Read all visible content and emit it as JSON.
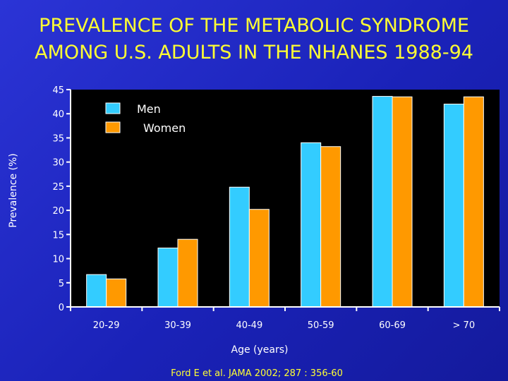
{
  "title_lines": [
    "PREVALENCE OF THE METABOLIC SYNDROME",
    "AMONG U.S. ADULTS IN THE NHANES 1988-94"
  ],
  "source": "Ford E et al. JAMA 2002; 287 : 356-60",
  "colors": {
    "men": "#33ccff",
    "women": "#ff9900",
    "title": "#ffff33",
    "plot_bg": "#000000"
  },
  "chart_data": {
    "type": "bar",
    "title": "PREVALENCE OF THE METABOLIC SYNDROME AMONG U.S. ADULTS IN THE NHANES 1988-94",
    "xlabel": "Age (years)",
    "ylabel": "Prevalence (%)",
    "categories": [
      "20-29",
      "30-39",
      "40-49",
      "50-59",
      "60-69",
      "> 70"
    ],
    "series": [
      {
        "name": "Men",
        "values": [
          6.7,
          12.2,
          24.8,
          34.0,
          43.6,
          42.0
        ]
      },
      {
        "name": "Women",
        "values": [
          5.8,
          14.0,
          20.2,
          33.2,
          43.5,
          43.5
        ]
      }
    ],
    "ylim": [
      0,
      45
    ],
    "yticks": [
      0,
      5,
      10,
      15,
      20,
      25,
      30,
      35,
      40,
      45
    ],
    "legend_position": "top-left",
    "grid": false
  }
}
